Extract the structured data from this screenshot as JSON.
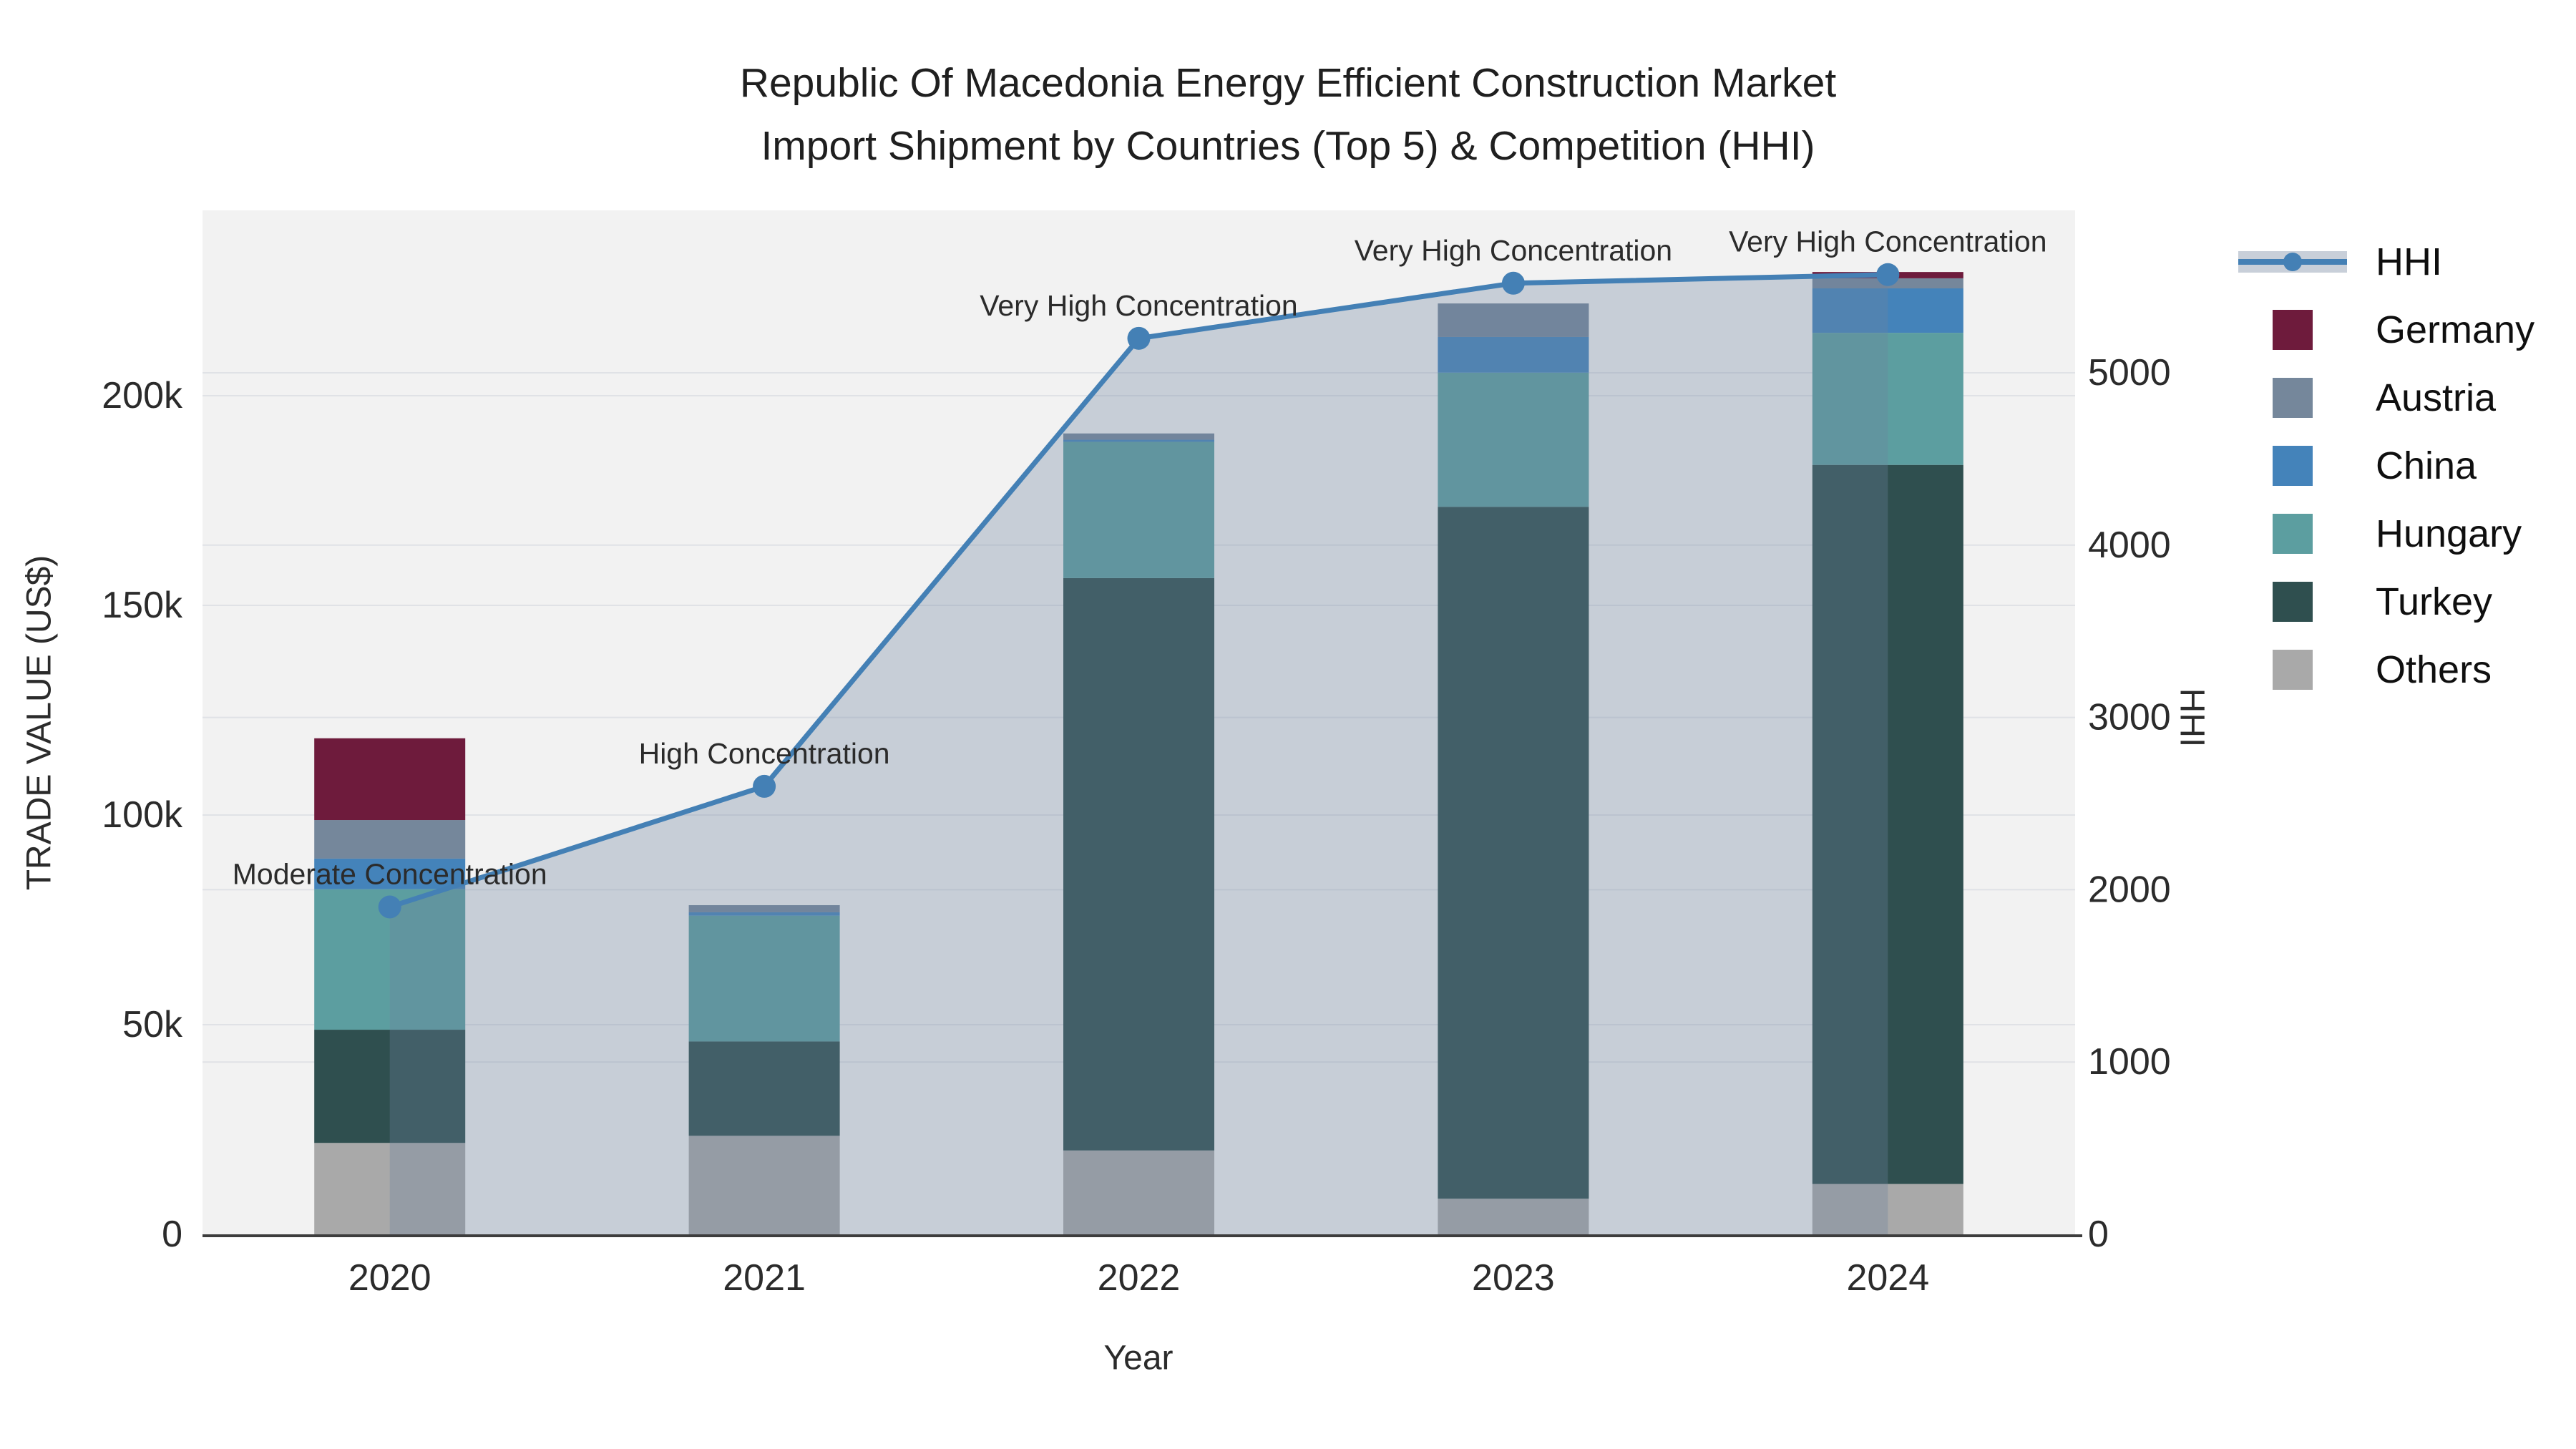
{
  "title": {
    "line1": "Republic Of Macedonia Energy Efficient Construction Market",
    "line2": "Import Shipment by Countries (Top 5) & Competition (HHI)"
  },
  "chart_data": {
    "type": "bar-stacked+line",
    "categories": [
      "2020",
      "2021",
      "2022",
      "2023",
      "2024"
    ],
    "bar_series": [
      {
        "name": "Others",
        "color": "#A9A9A9",
        "values": [
          21800,
          23500,
          20000,
          8500,
          12000
        ]
      },
      {
        "name": "Turkey",
        "color": "#2F4F4F",
        "values": [
          27000,
          22500,
          136500,
          165000,
          171500
        ]
      },
      {
        "name": "Hungary",
        "color": "#5C9EA0",
        "values": [
          33500,
          30000,
          32500,
          32000,
          31500
        ]
      },
      {
        "name": "China",
        "color": "#4483BA",
        "values": [
          7300,
          800,
          500,
          8500,
          10600
        ]
      },
      {
        "name": "Austria",
        "color": "#75879B",
        "values": [
          9200,
          1700,
          1500,
          8000,
          2400
        ]
      },
      {
        "name": "Germany",
        "color": "#6E1B3C",
        "values": [
          19500,
          0,
          0,
          0,
          1500
        ]
      }
    ],
    "line_series": {
      "name": "HHI",
      "color": "#4480B5",
      "area_fill": "rgba(108,130,160,0.32)",
      "values": [
        1900,
        2600,
        5200,
        5520,
        5570
      ]
    },
    "annotations": [
      {
        "year": "2020",
        "text": "Moderate Concentration"
      },
      {
        "year": "2021",
        "text": "High Concentration"
      },
      {
        "year": "2022",
        "text": "Very High Concentration"
      },
      {
        "year": "2023",
        "text": "Very High Concentration"
      },
      {
        "year": "2024",
        "text": "Very High Concentration"
      }
    ],
    "x_axis": {
      "title": "Year"
    },
    "y_left_axis": {
      "title": "TRADE VALUE (US$)",
      "range": [
        0,
        244000
      ],
      "ticks": [
        {
          "label": "0",
          "value": 0
        },
        {
          "label": "50k",
          "value": 50000
        },
        {
          "label": "100k",
          "value": 100000
        },
        {
          "label": "150k",
          "value": 150000
        },
        {
          "label": "200k",
          "value": 200000
        }
      ]
    },
    "y_right_axis": {
      "title": "HHI",
      "range": [
        0,
        5940
      ],
      "ticks": [
        {
          "label": "0",
          "value": 0
        },
        {
          "label": "1000",
          "value": 1000
        },
        {
          "label": "2000",
          "value": 2000
        },
        {
          "label": "3000",
          "value": 3000
        },
        {
          "label": "4000",
          "value": 4000
        },
        {
          "label": "5000",
          "value": 5000
        }
      ]
    },
    "layout": {
      "plot_bg": "#F2F2F2",
      "grid_color": "#E0E2E6",
      "axis_line_color": "#3d3d3d",
      "legend_position": "right",
      "grid": true
    }
  }
}
